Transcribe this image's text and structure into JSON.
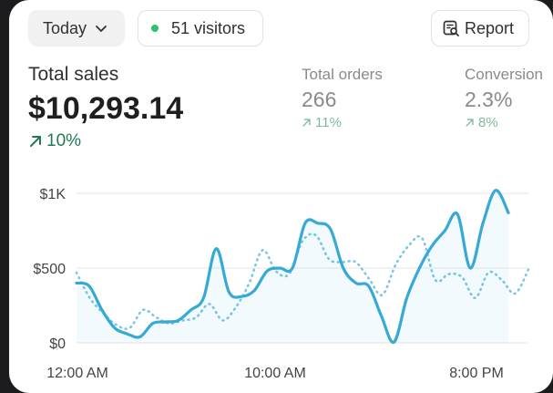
{
  "toolbar": {
    "date_range_label": "Today",
    "visitors_label": "51 visitors",
    "report_label": "Report",
    "visitors_dot_color": "#29c36a"
  },
  "metrics": {
    "total_sales": {
      "label": "Total sales",
      "value": "$10,293.14",
      "change": "10%"
    },
    "total_orders": {
      "label": "Total orders",
      "value": "266",
      "change": "11%"
    },
    "conversion": {
      "label": "Conversion",
      "value": "2.3%",
      "change": "8%"
    }
  },
  "chart_data": {
    "type": "line",
    "y_tick_labels": [
      "$1K",
      "$500",
      "$0"
    ],
    "x_tick_labels": [
      "12:00 AM",
      "10:00 AM",
      "8:00 PM"
    ],
    "ylim": [
      0,
      1000
    ],
    "grid": true,
    "series": [
      {
        "style": "solid",
        "color": "#36a9d6",
        "values": [
          400,
          380,
          220,
          100,
          60,
          40,
          130,
          140,
          150,
          220,
          300,
          630,
          340,
          310,
          350,
          480,
          500,
          500,
          800,
          800,
          760,
          500,
          400,
          380,
          180,
          5,
          300,
          500,
          650,
          750,
          860,
          500,
          800,
          1020,
          870
        ]
      },
      {
        "style": "dotted",
        "color": "#7cc7e3",
        "values": [
          470,
          300,
          200,
          120,
          100,
          220,
          170,
          130,
          150,
          170,
          260,
          150,
          240,
          400,
          620,
          480,
          460,
          680,
          720,
          560,
          540,
          540,
          430,
          320,
          520,
          650,
          700,
          420,
          460,
          440,
          300,
          470,
          420,
          330,
          490
        ]
      }
    ]
  }
}
